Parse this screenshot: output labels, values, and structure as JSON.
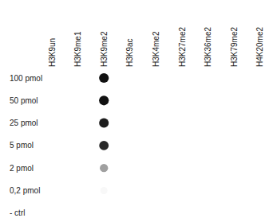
{
  "chart_data": {
    "type": "heatmap",
    "categories": [
      "H3K9un",
      "H3K9me1",
      "H3K9me2",
      "H3K9ac",
      "H3K4me2",
      "H3K27me2",
      "H3K36me2",
      "H3K79me2",
      "H4K20me2"
    ],
    "rows": [
      "100 pmol",
      "50 pmol",
      "25 pmol",
      "5 pmol",
      "2 pmol",
      "0,2 pmol",
      "- ctrl"
    ],
    "cells": [
      [
        0,
        0,
        1,
        0,
        0,
        0,
        0,
        0,
        0
      ],
      [
        0,
        0,
        1,
        0,
        0,
        0,
        0,
        0,
        0
      ],
      [
        0,
        0,
        0.95,
        0,
        0,
        0,
        0,
        0,
        0
      ],
      [
        0,
        0,
        0.9,
        0,
        0,
        0,
        0,
        0,
        0
      ],
      [
        0,
        0,
        0.4,
        0,
        0,
        0,
        0,
        0,
        0
      ],
      [
        0,
        0,
        0.03,
        0,
        0,
        0,
        0,
        0,
        0
      ],
      [
        0,
        0,
        0,
        0,
        0,
        0,
        0,
        0,
        0
      ]
    ],
    "zlim": [
      0,
      1
    ],
    "tick_labels": true
  }
}
